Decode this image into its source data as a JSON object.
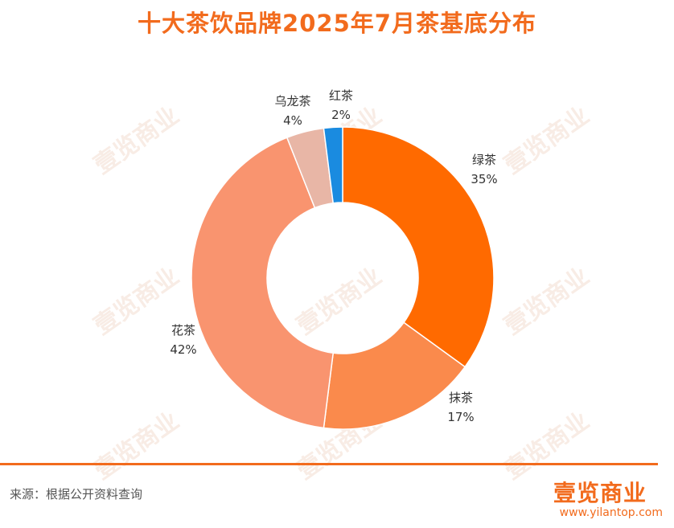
{
  "title": "十大茶饮品牌2025年7月茶基底分布",
  "watermark_text": "壹览商业",
  "footer": {
    "source": "来源：根据公开资料查询",
    "brand": "壹览商业",
    "site": "www.yilantop.com"
  },
  "colors": {
    "accent": "#f26b1d"
  },
  "chart_data": {
    "type": "pie",
    "donut": true,
    "categories": [
      "绿茶",
      "抹茶",
      "花茶",
      "乌龙茶",
      "红茶"
    ],
    "values": [
      35,
      17,
      42,
      4,
      2
    ],
    "value_labels": [
      "35%",
      "17%",
      "42%",
      "4%",
      "2%"
    ],
    "colors": [
      "#ff6a00",
      "#fa8a4c",
      "#f9946f",
      "#e8b6a6",
      "#1a8be0"
    ],
    "start": "12 o'clock",
    "direction": "clockwise"
  }
}
